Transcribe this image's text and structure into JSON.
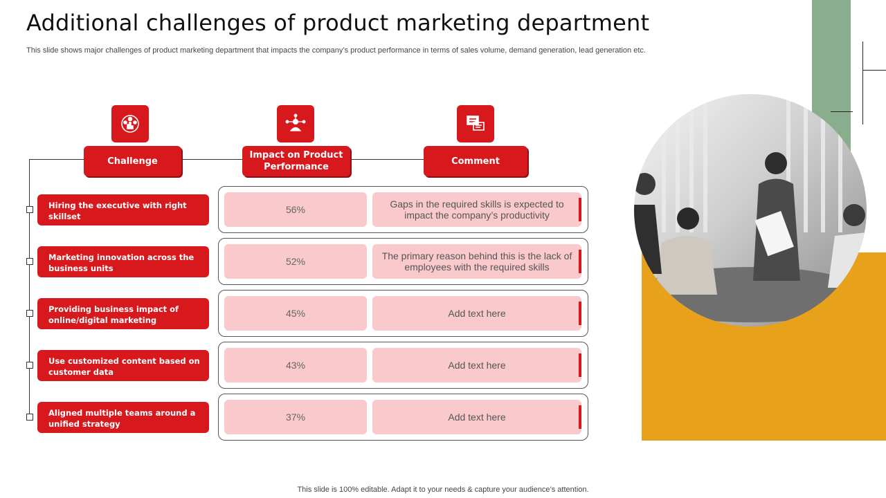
{
  "title": "Additional challenges of product marketing department",
  "subtitle": "This slide shows major challenges of product marketing department that impacts the company’s product performance in terms of sales volume, demand generation, lead generation etc.",
  "footer": "This slide is 100% editable. Adapt it to your needs & capture your audience’s attention.",
  "headers": {
    "challenge": "Challenge",
    "impact_line1": "Impact on Product",
    "impact_line2": "Performance",
    "comment": "Comment"
  },
  "icons": {
    "challenge": "team-icon",
    "impact": "network-person-icon",
    "comment": "chat-icon"
  },
  "rows": [
    {
      "challenge": "Hiring the executive with right skillset",
      "impact": "56%",
      "comment": "Gaps in the required skills is expected to impact the company’s productivity"
    },
    {
      "challenge": "Marketing innovation across the business units",
      "impact": "52%",
      "comment": "The primary reason behind this is the lack of employees with the required skills"
    },
    {
      "challenge": "Providing business impact of online/digital marketing",
      "impact": "45%",
      "comment": "Add text here"
    },
    {
      "challenge": "Use customized content based on customer data",
      "impact": "43%",
      "comment": "Add text here"
    },
    {
      "challenge": "Aligned multiple teams around a unified strategy",
      "impact": "37%",
      "comment": "Add text here"
    }
  ],
  "colors": {
    "accent_red": "#d7191e",
    "pink": "#f9c9cb",
    "green": "#8aad8e",
    "orange": "#e8a11a"
  }
}
